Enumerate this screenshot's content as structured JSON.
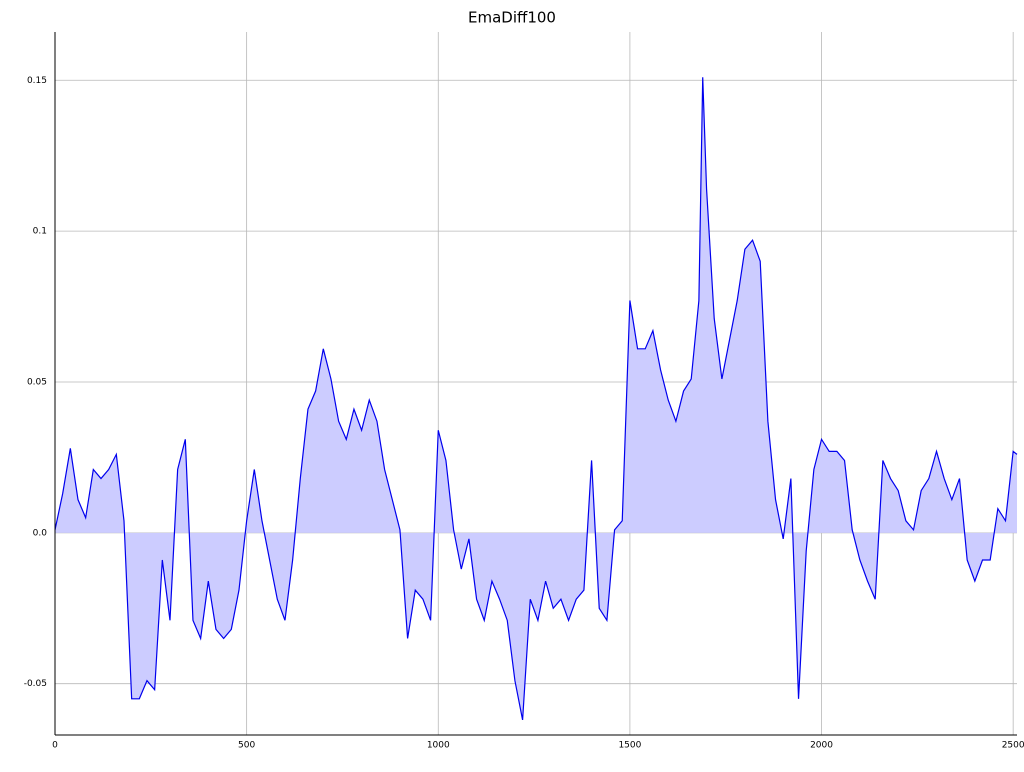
{
  "chart_data": {
    "type": "area",
    "title": "EmaDiff100",
    "xlim": [
      0,
      2510
    ],
    "ylim": [
      -0.067,
      0.166
    ],
    "xticks": [
      0,
      500,
      1000,
      1500,
      2000,
      2500
    ],
    "yticks": [
      -0.05,
      {
        "value": 0,
        "label": "0.0"
      },
      0.05,
      0.1,
      0.15
    ],
    "grid": true,
    "baseline": 0,
    "series": [
      {
        "color": "#0000ee",
        "fill": "#ccccff",
        "x": [
          0,
          20,
          40,
          60,
          80,
          100,
          120,
          140,
          160,
          180,
          200,
          220,
          240,
          260,
          280,
          300,
          320,
          340,
          360,
          380,
          400,
          420,
          440,
          460,
          480,
          500,
          520,
          540,
          560,
          580,
          600,
          620,
          640,
          660,
          680,
          700,
          720,
          740,
          760,
          780,
          800,
          820,
          840,
          860,
          880,
          900,
          920,
          940,
          960,
          980,
          1000,
          1020,
          1040,
          1060,
          1080,
          1100,
          1120,
          1140,
          1160,
          1180,
          1200,
          1220,
          1240,
          1260,
          1280,
          1300,
          1320,
          1340,
          1360,
          1380,
          1400,
          1420,
          1440,
          1460,
          1480,
          1500,
          1520,
          1540,
          1560,
          1580,
          1600,
          1620,
          1640,
          1660,
          1680,
          1690,
          1700,
          1720,
          1740,
          1760,
          1780,
          1800,
          1820,
          1840,
          1860,
          1880,
          1900,
          1920,
          1940,
          1960,
          1980,
          2000,
          2020,
          2040,
          2060,
          2080,
          2100,
          2120,
          2140,
          2160,
          2180,
          2200,
          2220,
          2240,
          2260,
          2280,
          2300,
          2320,
          2340,
          2360,
          2380,
          2400,
          2420,
          2440,
          2460,
          2480,
          2500,
          2510
        ],
        "values": [
          0.001,
          0.013,
          0.028,
          0.011,
          0.005,
          0.021,
          0.018,
          0.021,
          0.026,
          0.004,
          -0.055,
          -0.055,
          -0.049,
          -0.052,
          -0.009,
          -0.029,
          0.021,
          0.031,
          -0.029,
          -0.035,
          -0.016,
          -0.032,
          -0.035,
          -0.032,
          -0.019,
          0.004,
          0.021,
          0.004,
          -0.009,
          -0.022,
          -0.029,
          -0.009,
          0.018,
          0.041,
          0.047,
          0.061,
          0.051,
          0.037,
          0.031,
          0.041,
          0.034,
          0.044,
          0.037,
          0.021,
          0.011,
          0.001,
          -0.035,
          -0.019,
          -0.022,
          -0.029,
          0.034,
          0.024,
          0.001,
          -0.012,
          -0.002,
          -0.022,
          -0.029,
          -0.016,
          -0.022,
          -0.029,
          -0.049,
          -0.062,
          -0.022,
          -0.029,
          -0.016,
          -0.025,
          -0.022,
          -0.029,
          -0.022,
          -0.019,
          0.024,
          -0.025,
          -0.029,
          0.001,
          0.004,
          0.077,
          0.061,
          0.061,
          0.067,
          0.054,
          0.044,
          0.037,
          0.047,
          0.051,
          0.077,
          0.151,
          0.114,
          0.071,
          0.051,
          0.064,
          0.077,
          0.094,
          0.097,
          0.09,
          0.037,
          0.011,
          -0.002,
          0.018,
          -0.055,
          -0.006,
          0.021,
          0.031,
          0.027,
          0.027,
          0.024,
          0.001,
          -0.009,
          -0.016,
          -0.022,
          0.024,
          0.018,
          0.014,
          0.004,
          0.001,
          0.014,
          0.018,
          0.027,
          0.018,
          0.011,
          0.018,
          -0.009,
          -0.016,
          -0.009,
          -0.009,
          0.008,
          0.004,
          0.027,
          0.026
        ]
      }
    ]
  }
}
